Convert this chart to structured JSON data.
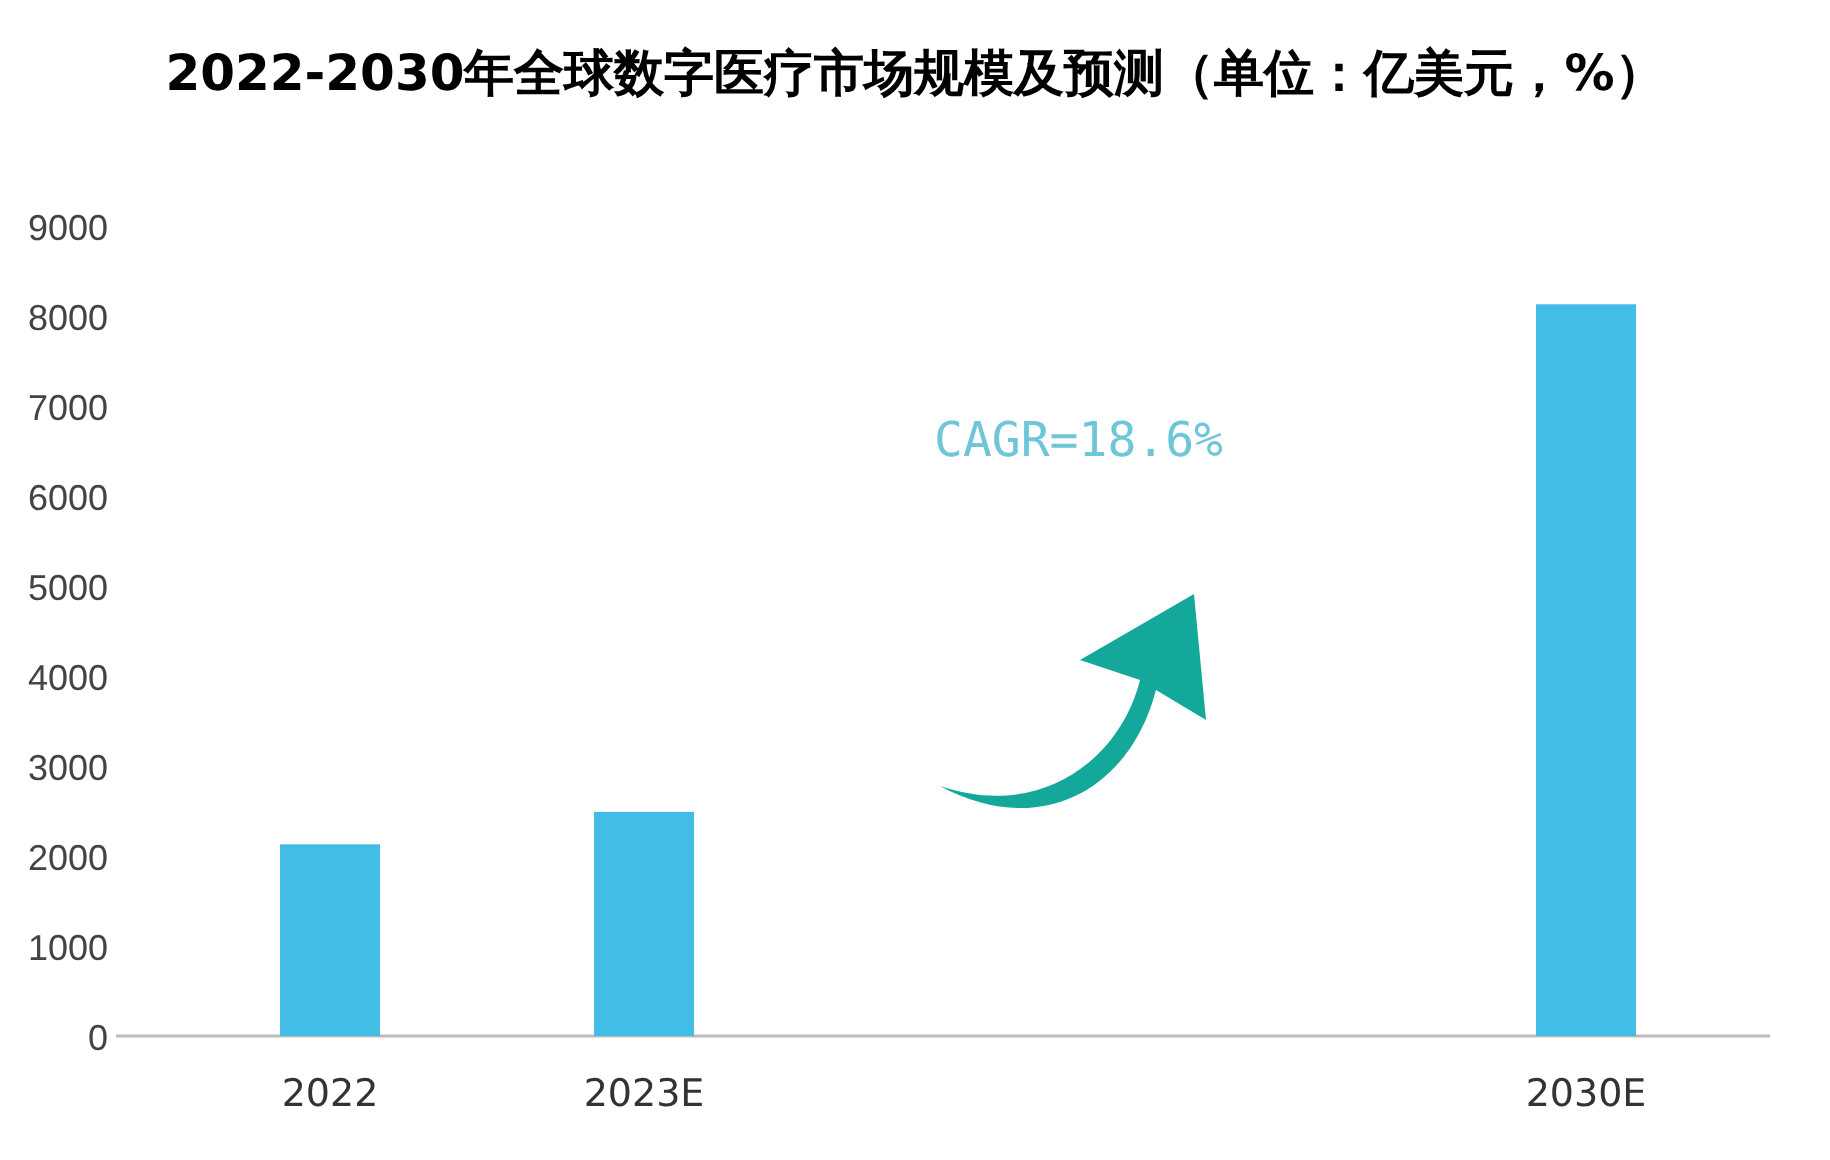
{
  "chart_data": {
    "type": "bar",
    "title": "2022-2030年全球数字医疗市场规模及预测（单位：亿美元，%）",
    "categories": [
      "2022",
      "2023E",
      null,
      null,
      "2030E"
    ],
    "values": [
      2130,
      2490,
      null,
      null,
      8130
    ],
    "color": "#42bde6",
    "ylim": [
      0,
      9000
    ],
    "yticks": [
      0,
      1000,
      2000,
      3000,
      4000,
      5000,
      6000,
      7000,
      8000,
      9000
    ],
    "annotations": [
      "CAGR=18.6%"
    ]
  }
}
